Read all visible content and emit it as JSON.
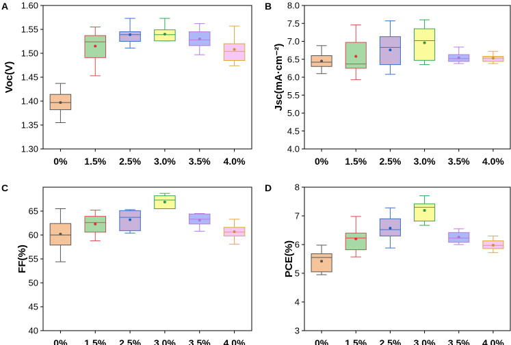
{
  "chart_data": [
    {
      "panel": "A",
      "type": "box",
      "ylabel": "Voc(V)",
      "ylim": [
        1.3,
        1.6
      ],
      "yticks": [
        "1.30",
        "1.35",
        "1.40",
        "1.45",
        "1.50",
        "1.55",
        "1.60"
      ],
      "categories": [
        "0%",
        "1.5%",
        "2.5%",
        "3.0%",
        "3.5%",
        "4.0%"
      ],
      "boxes": [
        {
          "min": 1.355,
          "q1": 1.382,
          "median": 1.397,
          "q3": 1.414,
          "max": 1.437,
          "mean": 1.397
        },
        {
          "min": 1.453,
          "q1": 1.491,
          "median": 1.524,
          "q3": 1.537,
          "max": 1.555,
          "mean": 1.515
        },
        {
          "min": 1.511,
          "q1": 1.525,
          "median": 1.539,
          "q3": 1.545,
          "max": 1.573,
          "mean": 1.539
        },
        {
          "min": 1.526,
          "q1": 1.526,
          "median": 1.539,
          "q3": 1.549,
          "max": 1.573,
          "mean": 1.54
        },
        {
          "min": 1.497,
          "q1": 1.516,
          "median": 1.528,
          "q3": 1.545,
          "max": 1.562,
          "mean": 1.53
        },
        {
          "min": 1.474,
          "q1": 1.485,
          "median": 1.504,
          "q3": 1.52,
          "max": 1.557,
          "mean": 1.508
        }
      ]
    },
    {
      "panel": "B",
      "type": "box",
      "ylabel": "Jsc(mA·cm⁻²)",
      "ylim": [
        4.0,
        8.0
      ],
      "yticks": [
        "4.0",
        "4.5",
        "5.0",
        "5.5",
        "6.0",
        "6.5",
        "7.0",
        "7.5",
        "8.0"
      ],
      "categories": [
        "0%",
        "1.5%",
        "2.5%",
        "3.0%",
        "3.5%",
        "4.0%"
      ],
      "boxes": [
        {
          "min": 6.1,
          "q1": 6.3,
          "median": 6.42,
          "q3": 6.6,
          "max": 6.88,
          "mean": 6.45
        },
        {
          "min": 5.93,
          "q1": 6.25,
          "median": 6.37,
          "q3": 6.97,
          "max": 7.46,
          "mean": 6.58
        },
        {
          "min": 6.08,
          "q1": 6.35,
          "median": 6.83,
          "q3": 7.13,
          "max": 7.57,
          "mean": 6.76
        },
        {
          "min": 6.35,
          "q1": 6.47,
          "median": 7.02,
          "q3": 7.35,
          "max": 7.6,
          "mean": 6.96
        },
        {
          "min": 6.38,
          "q1": 6.44,
          "median": 6.52,
          "q3": 6.63,
          "max": 6.84,
          "mean": 6.54
        },
        {
          "min": 6.38,
          "q1": 6.44,
          "median": 6.53,
          "q3": 6.58,
          "max": 6.72,
          "mean": 6.53
        }
      ]
    },
    {
      "panel": "C",
      "type": "box",
      "ylabel": "FF(%)",
      "ylim": [
        40,
        70
      ],
      "yticks": [
        "40",
        "45",
        "50",
        "55",
        "60",
        "65"
      ],
      "categories": [
        "0%",
        "1.5%",
        "2.5%",
        "3.0%",
        "3.5%",
        "4.0%"
      ],
      "boxes": [
        {
          "min": 54.4,
          "q1": 57.9,
          "median": 60.0,
          "q3": 62.4,
          "max": 65.5,
          "mean": 60.2
        },
        {
          "min": 58.8,
          "q1": 60.6,
          "median": 62.6,
          "q3": 63.9,
          "max": 65.2,
          "mean": 62.3
        },
        {
          "min": 60.4,
          "q1": 60.9,
          "median": 63.7,
          "q3": 65.1,
          "max": 65.3,
          "mean": 63.2
        },
        {
          "min": 65.5,
          "q1": 65.5,
          "median": 67.3,
          "q3": 68.2,
          "max": 68.7,
          "mean": 66.9
        },
        {
          "min": 60.8,
          "q1": 62.3,
          "median": 63.3,
          "q3": 64.4,
          "max": 64.5,
          "mean": 63.1
        },
        {
          "min": 58.1,
          "q1": 59.8,
          "median": 60.6,
          "q3": 61.6,
          "max": 63.3,
          "mean": 60.7
        }
      ]
    },
    {
      "panel": "D",
      "type": "box",
      "ylabel": "PCE(%)",
      "ylim": [
        3,
        8
      ],
      "yticks": [
        "3",
        "4",
        "5",
        "6",
        "7",
        "8"
      ],
      "categories": [
        "0%",
        "1.5%",
        "2.5%",
        "3.0%",
        "3.5%",
        "4.0%"
      ],
      "boxes": [
        {
          "min": 4.95,
          "q1": 5.05,
          "median": 5.55,
          "q3": 5.68,
          "max": 5.98,
          "mean": 5.42
        },
        {
          "min": 5.57,
          "q1": 5.82,
          "median": 6.23,
          "q3": 6.4,
          "max": 6.98,
          "mean": 6.2
        },
        {
          "min": 5.88,
          "q1": 6.3,
          "median": 6.52,
          "q3": 6.9,
          "max": 7.28,
          "mean": 6.57
        },
        {
          "min": 6.67,
          "q1": 6.82,
          "median": 7.3,
          "q3": 7.42,
          "max": 7.7,
          "mean": 7.19
        },
        {
          "min": 6.0,
          "q1": 6.08,
          "median": 6.23,
          "q3": 6.42,
          "max": 6.55,
          "mean": 6.26
        },
        {
          "min": 5.72,
          "q1": 5.86,
          "median": 5.97,
          "q3": 6.13,
          "max": 6.3,
          "mean": 5.98
        }
      ]
    }
  ],
  "colors": {
    "fills": [
      "#f6c49b",
      "#a6d9a6",
      "#c9b3da",
      "#fbfb9c",
      "#adb9f6",
      "#f8c8f5"
    ],
    "strokes": [
      "#555555",
      "#d94a4a",
      "#3a6fc7",
      "#33a655",
      "#b77be0",
      "#e0a83a"
    ],
    "means": [
      "#555555",
      "#e03030",
      "#2060c0",
      "#2a9a48",
      "#b070e0",
      "#d09030"
    ]
  }
}
